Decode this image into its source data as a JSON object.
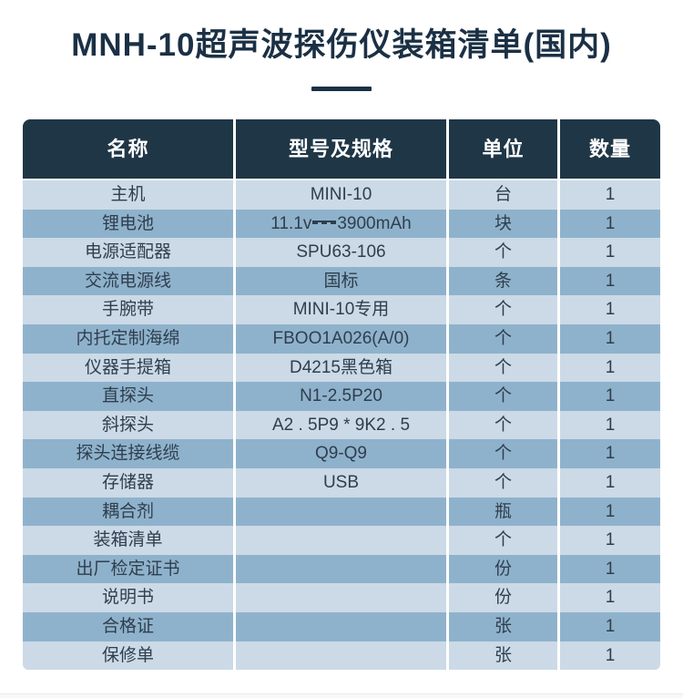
{
  "title": "MNH-10超声波探伤仪装箱清单(国内)",
  "table": {
    "headers": [
      "名称",
      "型号及规格",
      "单位",
      "数量"
    ],
    "rows": [
      {
        "name": "主机",
        "spec": "MINI-10",
        "unit": "台",
        "qty": "1"
      },
      {
        "name": "锂电池",
        "spec": "11.1v⎓3900mAh",
        "unit": "块",
        "qty": "1"
      },
      {
        "name": "电源适配器",
        "spec": "SPU63-106",
        "unit": "个",
        "qty": "1"
      },
      {
        "name": "交流电源线",
        "spec": "国标",
        "unit": "条",
        "qty": "1"
      },
      {
        "name": "手腕带",
        "spec": "MINI-10专用",
        "unit": "个",
        "qty": "1"
      },
      {
        "name": "内托定制海绵",
        "spec": "FBOO1A026(A/0)",
        "unit": "个",
        "qty": "1"
      },
      {
        "name": "仪器手提箱",
        "spec": "D4215黑色箱",
        "unit": "个",
        "qty": "1"
      },
      {
        "name": "直探头",
        "spec": "N1-2.5P20",
        "unit": "个",
        "qty": "1"
      },
      {
        "name": "斜探头",
        "spec": "A2 . 5P9 * 9K2 . 5",
        "unit": "个",
        "qty": "1"
      },
      {
        "name": "探头连接线缆",
        "spec": "Q9-Q9",
        "unit": "个",
        "qty": "1"
      },
      {
        "name": "存储器",
        "spec": "USB",
        "unit": "个",
        "qty": "1"
      },
      {
        "name": "耦合剂",
        "spec": "",
        "unit": "瓶",
        "qty": "1"
      },
      {
        "name": "装箱清单",
        "spec": "",
        "unit": "个",
        "qty": "1"
      },
      {
        "name": "出厂检定证书",
        "spec": "",
        "unit": "份",
        "qty": "1"
      },
      {
        "name": "说明书",
        "spec": "",
        "unit": "份",
        "qty": "1"
      },
      {
        "name": "合格证",
        "spec": "",
        "unit": "张",
        "qty": "1"
      },
      {
        "name": "保修单",
        "spec": "",
        "unit": "张",
        "qty": "1"
      }
    ]
  },
  "colors": {
    "header_bg": "#1f3646",
    "row_light": "#cbdae6",
    "row_dark": "#8fb2cc",
    "title_text": "#1b3045",
    "body_text": "#2f3e4d"
  }
}
